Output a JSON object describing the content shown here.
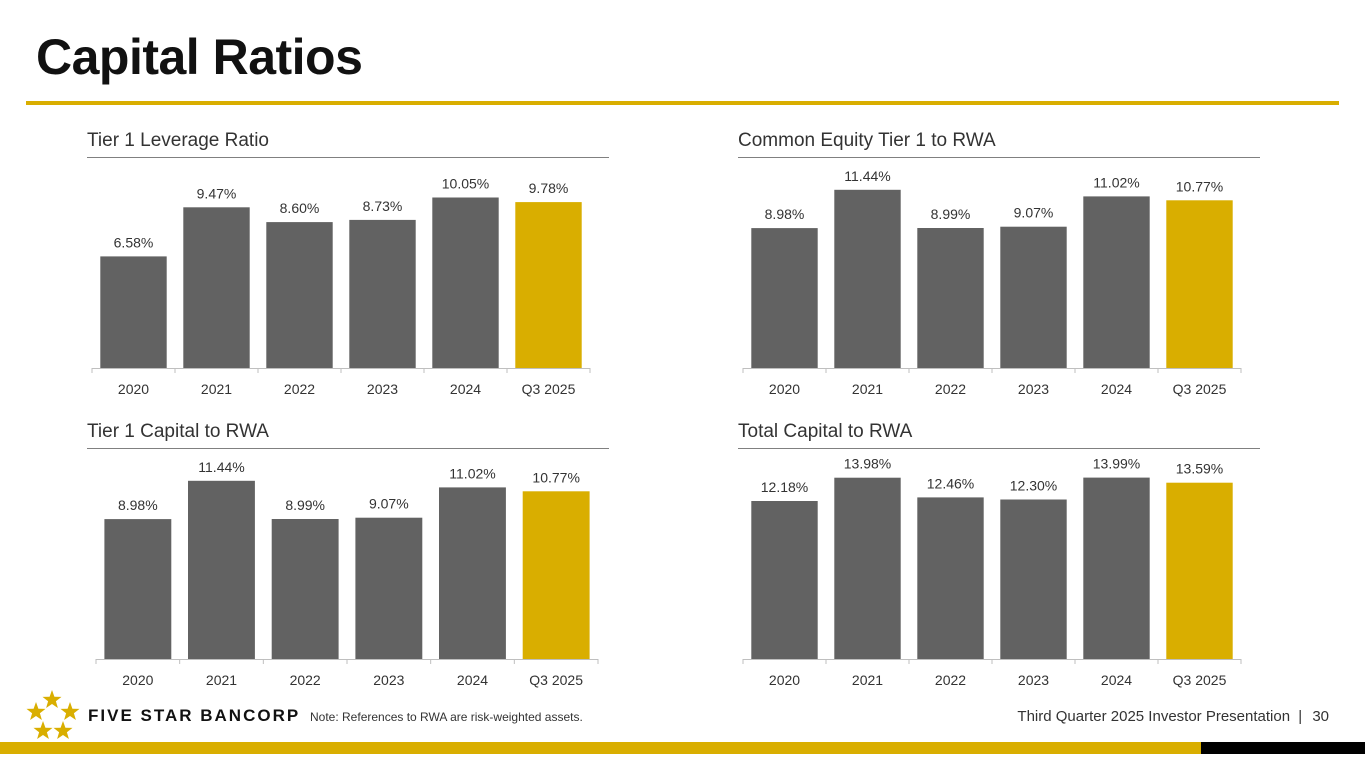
{
  "page": {
    "title": "Capital Ratios"
  },
  "colors": {
    "accent": "#D9AE00",
    "bar": "#626262",
    "axis": "#BFBFBF",
    "text": "#333333"
  },
  "footer": {
    "brand": "FIVE STAR BANCORP",
    "note": "Note: References to RWA are risk-weighted assets.",
    "presentation": "Third Quarter 2025 Investor Presentation",
    "separator": "|",
    "page_number": "30"
  },
  "chart_data": [
    {
      "type": "bar",
      "title": "Tier 1 Leverage Ratio",
      "categories": [
        "2020",
        "2021",
        "2022",
        "2023",
        "2024",
        "Q3 2025"
      ],
      "values": [
        6.58,
        9.47,
        8.6,
        8.73,
        10.05,
        9.78
      ],
      "data_labels": [
        "6.58%",
        "9.47%",
        "8.60%",
        "8.73%",
        "10.05%",
        "9.78%"
      ],
      "highlight_index": 5,
      "ylim": [
        0,
        11.2
      ]
    },
    {
      "type": "bar",
      "title": "Common Equity Tier 1 to RWA",
      "categories": [
        "2020",
        "2021",
        "2022",
        "2023",
        "2024",
        "Q3 2025"
      ],
      "values": [
        8.98,
        11.44,
        8.99,
        9.07,
        11.02,
        10.77
      ],
      "data_labels": [
        "8.98%",
        "11.44%",
        "8.99%",
        "9.07%",
        "11.02%",
        "10.77%"
      ],
      "highlight_index": 5,
      "ylim": [
        0,
        12.2
      ]
    },
    {
      "type": "bar",
      "title": "Tier 1 Capital to RWA",
      "categories": [
        "2020",
        "2021",
        "2022",
        "2023",
        "2024",
        "Q3 2025"
      ],
      "values": [
        8.98,
        11.44,
        8.99,
        9.07,
        11.02,
        10.77
      ],
      "data_labels": [
        "8.98%",
        "11.44%",
        "8.99%",
        "9.07%",
        "11.02%",
        "10.77%"
      ],
      "highlight_index": 5,
      "ylim": [
        0,
        12.2
      ]
    },
    {
      "type": "bar",
      "title": "Total Capital to RWA",
      "categories": [
        "2020",
        "2021",
        "2022",
        "2023",
        "2024",
        "Q3 2025"
      ],
      "values": [
        12.18,
        13.98,
        12.46,
        12.3,
        13.99,
        13.59
      ],
      "data_labels": [
        "12.18%",
        "13.98%",
        "12.46%",
        "12.30%",
        "13.99%",
        "13.59%"
      ],
      "highlight_index": 5,
      "ylim": [
        0,
        14.65
      ]
    }
  ]
}
